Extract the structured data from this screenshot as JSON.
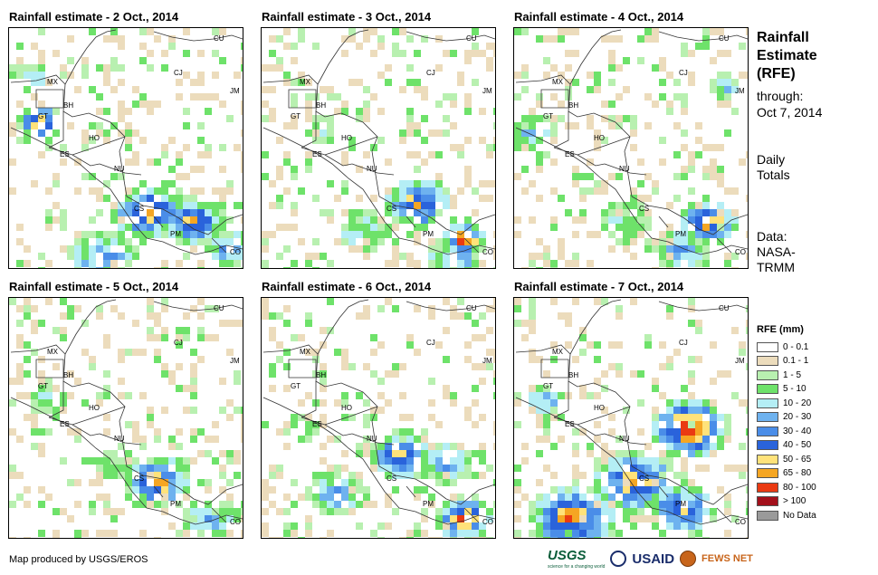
{
  "panels": [
    {
      "title": "Rainfall estimate - 2 Oct., 2014"
    },
    {
      "title": "Rainfall estimate - 3 Oct., 2014"
    },
    {
      "title": "Rainfall estimate - 4 Oct., 2014"
    },
    {
      "title": "Rainfall estimate - 5 Oct., 2014"
    },
    {
      "title": "Rainfall estimate - 6 Oct., 2014"
    },
    {
      "title": "Rainfall estimate - 7 Oct., 2014"
    }
  ],
  "country_labels": [
    "CU",
    "CJ",
    "JM",
    "MX",
    "BH",
    "GT",
    "HO",
    "ES",
    "NU",
    "CS",
    "PM",
    "CO"
  ],
  "side": {
    "title_lines": [
      "Rainfall",
      "Estimate",
      "(RFE)"
    ],
    "through_label": "through:",
    "through_date": "Oct 7, 2014",
    "daily_lines": [
      "Daily",
      "Totals"
    ],
    "data_lines": [
      "Data:",
      "NASA-",
      "TRMM"
    ]
  },
  "legend": {
    "title": "RFE (mm)",
    "items": [
      {
        "label": "0 - 0.1",
        "color": "#ffffff"
      },
      {
        "label": "0.1 - 1",
        "color": "#ecdcbc"
      },
      {
        "label": "1 - 5",
        "color": "#b8f0b0"
      },
      {
        "label": "5 - 10",
        "color": "#6ee26a"
      },
      {
        "label": "10 - 20",
        "color": "#b4eef5"
      },
      {
        "label": "20 - 30",
        "color": "#6eb2ef"
      },
      {
        "label": "30 - 40",
        "color": "#4a8de8"
      },
      {
        "label": "40 - 50",
        "color": "#2a63db"
      },
      {
        "label": "50 - 65",
        "color": "#ffe27a"
      },
      {
        "label": "65 - 80",
        "color": "#f5a623"
      },
      {
        "label": "80 - 100",
        "color": "#ea3a12"
      },
      {
        "label": "> 100",
        "color": "#a3101b"
      },
      {
        "label": "No Data",
        "color": "#9a9a9a"
      }
    ]
  },
  "credit": "Map produced by USGS/EROS",
  "logos": {
    "usgs": "USGS",
    "usgs_tagline": "science for a changing world",
    "usaid": "USAID",
    "fews": "FEWS NET"
  }
}
